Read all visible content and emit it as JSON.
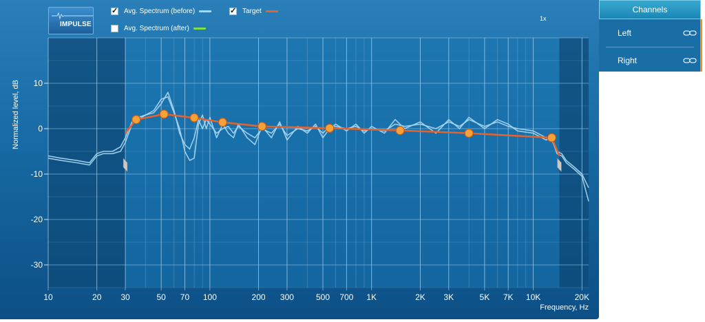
{
  "toolbar": {
    "impulse_label": "IMPULSE",
    "legend": [
      {
        "label": "Avg. Spectrum (before)",
        "checked": true,
        "color": "#a9d8f2"
      },
      {
        "label": "Target",
        "checked": true,
        "color": "#e8622c"
      },
      {
        "label": "Avg. Spectrum (after)",
        "checked": false,
        "color": "#7fe04a"
      }
    ],
    "zoom": "1x"
  },
  "channels": {
    "title": "Channels",
    "items": [
      {
        "label": "Left",
        "icon": "link-icon"
      },
      {
        "label": "Right",
        "icon": "link-icon"
      }
    ],
    "accent": "#ff8c1a"
  },
  "chart_data": {
    "type": "line",
    "xlabel": "Frequency, Hz",
    "ylabel": "Normalized level, dB",
    "xscale": "log",
    "xlim": [
      10,
      22000
    ],
    "ylim": [
      -35,
      20
    ],
    "x_ticks": [
      {
        "v": 10,
        "label": "10"
      },
      {
        "v": 20,
        "label": "20"
      },
      {
        "v": 30,
        "label": "30"
      },
      {
        "v": 50,
        "label": "50"
      },
      {
        "v": 70,
        "label": "70"
      },
      {
        "v": 100,
        "label": "100"
      },
      {
        "v": 200,
        "label": "200"
      },
      {
        "v": 300,
        "label": "300"
      },
      {
        "v": 500,
        "label": "500"
      },
      {
        "v": 700,
        "label": "700"
      },
      {
        "v": 1000,
        "label": "1K"
      },
      {
        "v": 2000,
        "label": "2K"
      },
      {
        "v": 3000,
        "label": "3K"
      },
      {
        "v": 5000,
        "label": "5K"
      },
      {
        "v": 7000,
        "label": "7K"
      },
      {
        "v": 10000,
        "label": "10K"
      },
      {
        "v": 20000,
        "label": "20K"
      }
    ],
    "y_ticks": [
      {
        "v": 10,
        "label": "10"
      },
      {
        "v": 0,
        "label": "0"
      },
      {
        "v": -10,
        "label": "-10"
      },
      {
        "v": -20,
        "label": "-20"
      },
      {
        "v": -30,
        "label": "-30"
      }
    ],
    "active_range": [
      30,
      14500
    ],
    "grid": true,
    "series": [
      {
        "name": "Target",
        "color": "#e8622c",
        "x": [
          30,
          35,
          52,
          80,
          120,
          210,
          550,
          1500,
          4000,
          13000,
          14500
        ],
        "y": [
          -1,
          2,
          3.2,
          2.4,
          1.4,
          0.5,
          0.1,
          -0.4,
          -1,
          -2,
          -6
        ],
        "control_points": [
          {
            "x": 35,
            "y": 2
          },
          {
            "x": 52,
            "y": 3.2
          },
          {
            "x": 80,
            "y": 2.4
          },
          {
            "x": 120,
            "y": 1.4
          },
          {
            "x": 210,
            "y": 0.5
          },
          {
            "x": 550,
            "y": 0.1
          },
          {
            "x": 1500,
            "y": -0.4
          },
          {
            "x": 4000,
            "y": -1
          },
          {
            "x": 13000,
            "y": -2
          }
        ]
      },
      {
        "name": "Avg. Spectrum (before)",
        "color": "#a9d8f2",
        "x": [
          10,
          12,
          15,
          18,
          20,
          22,
          25,
          28,
          30,
          33,
          36,
          40,
          45,
          50,
          55,
          60,
          65,
          70,
          75,
          80,
          85,
          90,
          95,
          100,
          110,
          120,
          130,
          140,
          150,
          170,
          190,
          210,
          240,
          270,
          300,
          350,
          400,
          450,
          500,
          550,
          600,
          700,
          800,
          900,
          1000,
          1200,
          1400,
          1600,
          2000,
          2500,
          3000,
          3500,
          4000,
          5000,
          6000,
          7000,
          8000,
          10000,
          12000,
          13000,
          14000,
          15000,
          16000,
          18000,
          20000,
          22000
        ],
        "y": [
          -6,
          -6.5,
          -7,
          -7.5,
          -5.5,
          -5,
          -5,
          -4,
          -2,
          1.5,
          2.5,
          3,
          4,
          6.5,
          7,
          3.5,
          0,
          -5,
          -7,
          -6.5,
          1,
          3,
          0,
          2.5,
          -2,
          1,
          -1,
          -2,
          1,
          -2,
          -3.5,
          0.5,
          -2,
          1.5,
          -2.5,
          0.5,
          -1,
          1,
          -2,
          0,
          1,
          -0.5,
          1,
          -1,
          0.5,
          -1,
          2,
          0,
          1.5,
          -1,
          2,
          0,
          2.5,
          0,
          2,
          1,
          -0.5,
          -1,
          -2.5,
          -2,
          -5.5,
          -6,
          -7.5,
          -9,
          -10.5,
          -16
        ]
      },
      {
        "name": "Avg. Spectrum (before)",
        "color": "#a9d8f2",
        "x": [
          10,
          12,
          15,
          18,
          20,
          22,
          25,
          28,
          30,
          33,
          36,
          40,
          45,
          50,
          55,
          60,
          65,
          70,
          75,
          80,
          85,
          90,
          95,
          100,
          110,
          120,
          130,
          140,
          150,
          170,
          190,
          210,
          240,
          270,
          300,
          350,
          400,
          450,
          500,
          550,
          600,
          700,
          800,
          900,
          1000,
          1200,
          1400,
          1600,
          2000,
          2500,
          3000,
          3500,
          4000,
          5000,
          6000,
          7000,
          8000,
          10000,
          12000,
          13000,
          14000,
          15000,
          16000,
          18000,
          20000,
          22000
        ],
        "y": [
          -6.5,
          -7,
          -7.5,
          -8,
          -6,
          -5.5,
          -5.5,
          -5,
          -3,
          1,
          2,
          3,
          3.5,
          5.5,
          8,
          4,
          -1,
          -3.5,
          -4.5,
          -2,
          2,
          0,
          2,
          1,
          -1,
          0,
          0.5,
          -1,
          0.5,
          -1,
          -2,
          0,
          -1,
          1,
          -1.5,
          0,
          -0.5,
          0.5,
          -1,
          0.5,
          0.5,
          0,
          0.5,
          -0.5,
          0,
          -0.5,
          1,
          0.5,
          1,
          0,
          1.5,
          0.5,
          2,
          0.5,
          1.5,
          0.5,
          0,
          -0.5,
          -2,
          -2.5,
          -5,
          -5.5,
          -7,
          -8.5,
          -10,
          -13
        ]
      }
    ]
  }
}
